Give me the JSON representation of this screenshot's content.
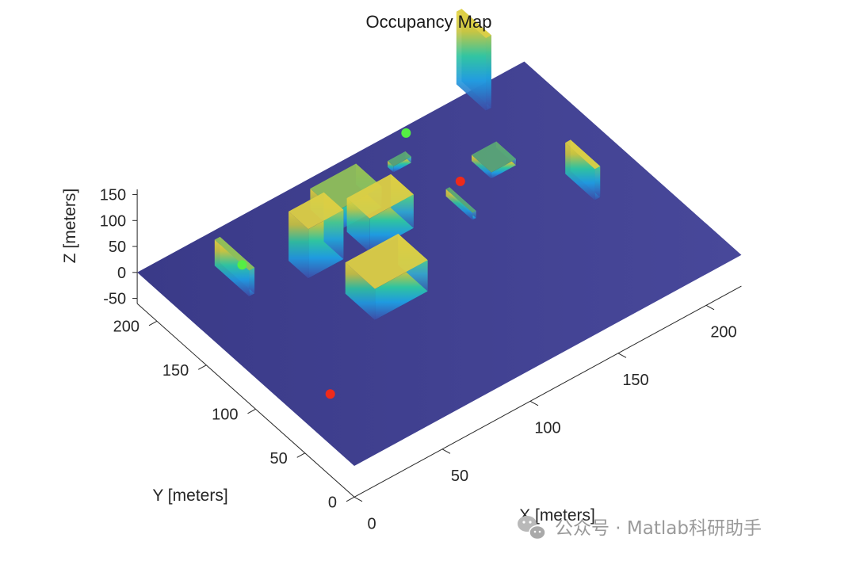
{
  "chart_data": {
    "type": "3d-occupancy-map",
    "title": "Occupancy Map",
    "xlabel": "X [meters]",
    "ylabel": "Y [meters]",
    "zlabel": "Z [meters]",
    "xticks": [
      0,
      50,
      100,
      150,
      200
    ],
    "yticks": [
      0,
      50,
      100,
      150,
      200
    ],
    "zticks": [
      -50,
      0,
      50,
      100,
      150
    ],
    "xlim": [
      0,
      220
    ],
    "ylim": [
      0,
      220
    ],
    "zlim": [
      -60,
      160
    ],
    "colormap": "parula",
    "ground_color": "#3b3a8c",
    "obstacles": [
      {
        "name": "wall-northwest",
        "x": [
          30,
          33
        ],
        "y": [
          160,
          195
        ],
        "z": [
          0,
          50
        ]
      },
      {
        "name": "building-tall-back",
        "x": [
          58,
          78
        ],
        "y": [
          150,
          170
        ],
        "z": [
          0,
          95
        ]
      },
      {
        "name": "block-green-back",
        "x": [
          86,
          112
        ],
        "y": [
          172,
          198
        ],
        "z": [
          0,
          40
        ]
      },
      {
        "name": "block-blue-small",
        "x": [
          130,
          140
        ],
        "y": [
          192,
          198
        ],
        "z": [
          0,
          12
        ]
      },
      {
        "name": "wall-back-right",
        "x": [
          187,
          190
        ],
        "y": [
          200,
          230
        ],
        "z": [
          0,
          140
        ]
      },
      {
        "name": "cube-center",
        "x": [
          90,
          115
        ],
        "y": [
          145,
          168
        ],
        "z": [
          0,
          65
        ]
      },
      {
        "name": "cube-front",
        "x": [
          65,
          95
        ],
        "y": [
          95,
          125
        ],
        "z": [
          0,
          60
        ]
      },
      {
        "name": "bar-diagonal",
        "x": [
          139,
          141
        ],
        "y": [
          128,
          155
        ],
        "z": [
          0,
          14
        ]
      },
      {
        "name": "slab-blue",
        "x": [
          162,
          176
        ],
        "y": [
          150,
          170
        ],
        "z": [
          0,
          12
        ]
      },
      {
        "name": "wall-east",
        "x": [
          190,
          193
        ],
        "y": [
          95,
          125
        ],
        "z": [
          0,
          60
        ]
      }
    ],
    "markers": [
      {
        "type": "start",
        "color": "#55ee44",
        "x": 40,
        "y": 185,
        "z": 0
      },
      {
        "type": "start",
        "color": "#55ee44",
        "x": 150,
        "y": 215,
        "z": 0
      },
      {
        "type": "goal",
        "color": "#ee2a1a",
        "x": 150,
        "y": 160,
        "z": 0
      },
      {
        "type": "goal",
        "color": "#ee2a1a",
        "x": 20,
        "y": 60,
        "z": 0
      }
    ]
  },
  "watermark": {
    "text": "公众号 · Matlab科研助手",
    "icon": "wechat-icon"
  }
}
